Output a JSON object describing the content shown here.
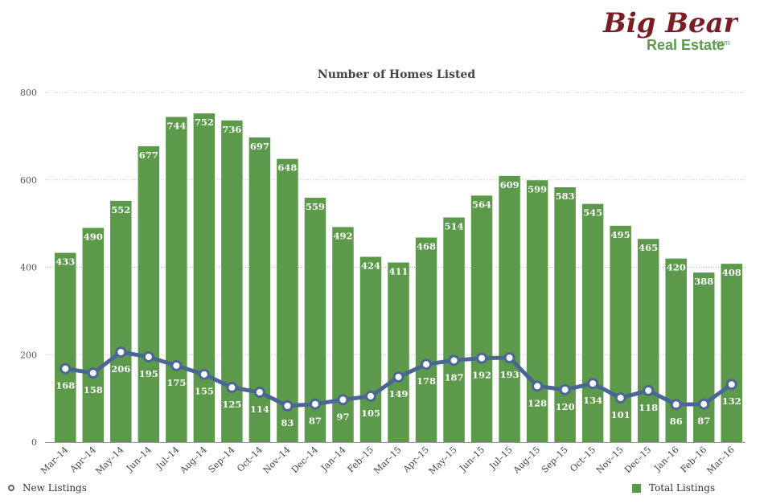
{
  "logo": {
    "line1": "Big Bear",
    "line2": "Real Estate",
    "suffix": ".com"
  },
  "colors": {
    "bars": "#5d994b",
    "line": "#4a6794",
    "grid": "#bbbbbb",
    "bar_label": "#ffffff",
    "text": "#444444"
  },
  "legend": {
    "line_label": "New Listings",
    "bar_label": "Total Listings",
    "placement": "bottom"
  },
  "chart_data": {
    "type": "bar",
    "title": "Number of Homes Listed",
    "xlabel": "",
    "ylabel": "",
    "ylim": [
      0,
      800
    ],
    "yticks": [
      0,
      200,
      400,
      600,
      800
    ],
    "grid": true,
    "categories": [
      "Mar–14",
      "Apr–14",
      "May–14",
      "Jun–14",
      "Jul–14",
      "Aug–14",
      "Sep–14",
      "Oct–14",
      "Nov–14",
      "Dec–14",
      "Jan–14",
      "Feb–15",
      "Mar–15",
      "Apr–15",
      "May–15",
      "Jun–15",
      "Jul–15",
      "Aug–15",
      "Sep–15",
      "Oct–15",
      "Nov–15",
      "Dec–15",
      "Jan–16",
      "Feb–16",
      "Mar–16"
    ],
    "series": [
      {
        "name": "Total Listings",
        "type": "bar",
        "values": [
          433,
          490,
          552,
          677,
          744,
          752,
          736,
          697,
          648,
          559,
          492,
          424,
          411,
          468,
          514,
          564,
          609,
          599,
          583,
          545,
          495,
          465,
          420,
          388,
          408
        ]
      },
      {
        "name": "New Listings",
        "type": "line",
        "values": [
          168,
          158,
          206,
          195,
          175,
          155,
          125,
          114,
          83,
          87,
          97,
          105,
          149,
          178,
          187,
          192,
          193,
          128,
          120,
          134,
          101,
          118,
          86,
          87,
          132
        ]
      }
    ]
  }
}
